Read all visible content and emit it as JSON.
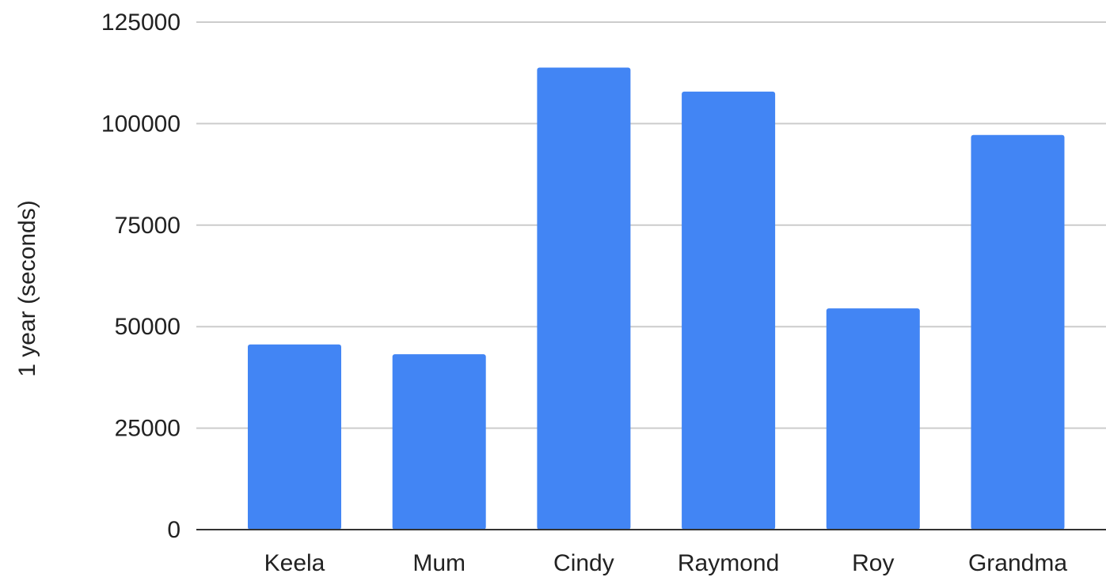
{
  "chart_data": {
    "type": "bar",
    "title": "",
    "xlabel": "",
    "ylabel": "1 year (seconds)",
    "categories": [
      "Keela",
      "Mum",
      "Cindy",
      "Raymond",
      "Roy",
      "Grandma"
    ],
    "series": [
      {
        "values": [
          45600,
          43200,
          113800,
          107900,
          54500,
          97200
        ],
        "color": "#4285f4"
      }
    ],
    "ylim": [
      0,
      125000
    ],
    "yticks": [
      "0",
      "25000",
      "50000",
      "75000",
      "100000",
      "125000"
    ],
    "grid": true,
    "legend": "none"
  }
}
